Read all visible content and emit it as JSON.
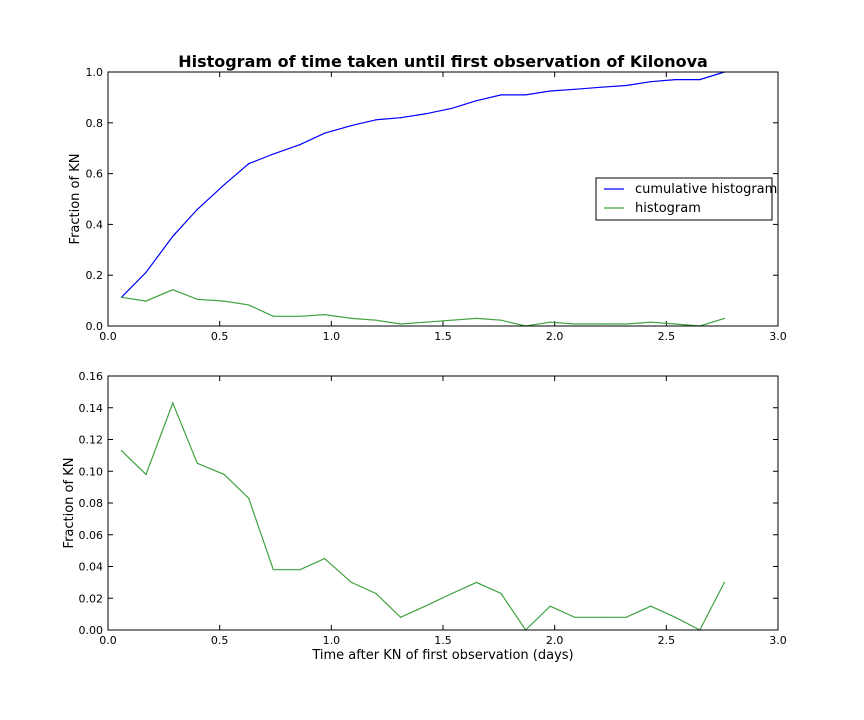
{
  "chart_data": [
    {
      "type": "line",
      "title": "Histogram of time taken until first observation of Kilonova",
      "xlabel": "",
      "ylabel": "Fraction of KN",
      "xlim": [
        0.0,
        3.0
      ],
      "ylim": [
        0.0,
        1.0
      ],
      "xticks": [
        "0.0",
        "0.5",
        "1.0",
        "1.5",
        "2.0",
        "2.5",
        "3.0"
      ],
      "yticks": [
        "0.0",
        "0.2",
        "0.4",
        "0.6",
        "0.8",
        "1.0"
      ],
      "grid": false,
      "legend_position": "center-right",
      "x": [
        0.06,
        0.17,
        0.29,
        0.4,
        0.52,
        0.63,
        0.74,
        0.86,
        0.97,
        1.09,
        1.2,
        1.31,
        1.42,
        1.54,
        1.65,
        1.76,
        1.87,
        1.98,
        2.09,
        2.21,
        2.32,
        2.43,
        2.54,
        2.65,
        2.76
      ],
      "series": [
        {
          "name": "cumulative histogram",
          "color": "#0000ff",
          "values": [
            0.113,
            0.211,
            0.353,
            0.459,
            0.556,
            0.639,
            0.677,
            0.714,
            0.759,
            0.789,
            0.812,
            0.82,
            0.835,
            0.857,
            0.887,
            0.91,
            0.91,
            0.925,
            0.932,
            0.94,
            0.947,
            0.962,
            0.97,
            0.97,
            1.0
          ]
        },
        {
          "name": "histogram",
          "color": "#3fa23f",
          "values": [
            0.113,
            0.098,
            0.143,
            0.105,
            0.098,
            0.083,
            0.038,
            0.038,
            0.045,
            0.03,
            0.023,
            0.008,
            0.015,
            0.023,
            0.03,
            0.023,
            0.0,
            0.015,
            0.008,
            0.008,
            0.008,
            0.015,
            0.008,
            0.0,
            0.03
          ]
        }
      ]
    },
    {
      "type": "line",
      "title": "",
      "xlabel": "Time after KN of first observation (days)",
      "ylabel": "Fraction of KN",
      "xlim": [
        0.0,
        3.0
      ],
      "ylim": [
        0.0,
        0.16
      ],
      "xticks": [
        "0.0",
        "0.5",
        "1.0",
        "1.5",
        "2.0",
        "2.5",
        "3.0"
      ],
      "yticks": [
        "0.00",
        "0.02",
        "0.04",
        "0.06",
        "0.08",
        "0.10",
        "0.12",
        "0.14",
        "0.16"
      ],
      "grid": false,
      "x": [
        0.06,
        0.17,
        0.29,
        0.4,
        0.52,
        0.63,
        0.74,
        0.86,
        0.97,
        1.09,
        1.2,
        1.31,
        1.42,
        1.54,
        1.65,
        1.76,
        1.87,
        1.98,
        2.09,
        2.21,
        2.32,
        2.43,
        2.54,
        2.65,
        2.76
      ],
      "series": [
        {
          "color": "#3fa23f",
          "values": [
            0.113,
            0.098,
            0.143,
            0.105,
            0.098,
            0.083,
            0.038,
            0.038,
            0.045,
            0.03,
            0.023,
            0.008,
            0.015,
            0.023,
            0.03,
            0.023,
            0.0,
            0.015,
            0.008,
            0.008,
            0.008,
            0.015,
            0.008,
            0.0,
            0.03
          ]
        }
      ]
    }
  ]
}
